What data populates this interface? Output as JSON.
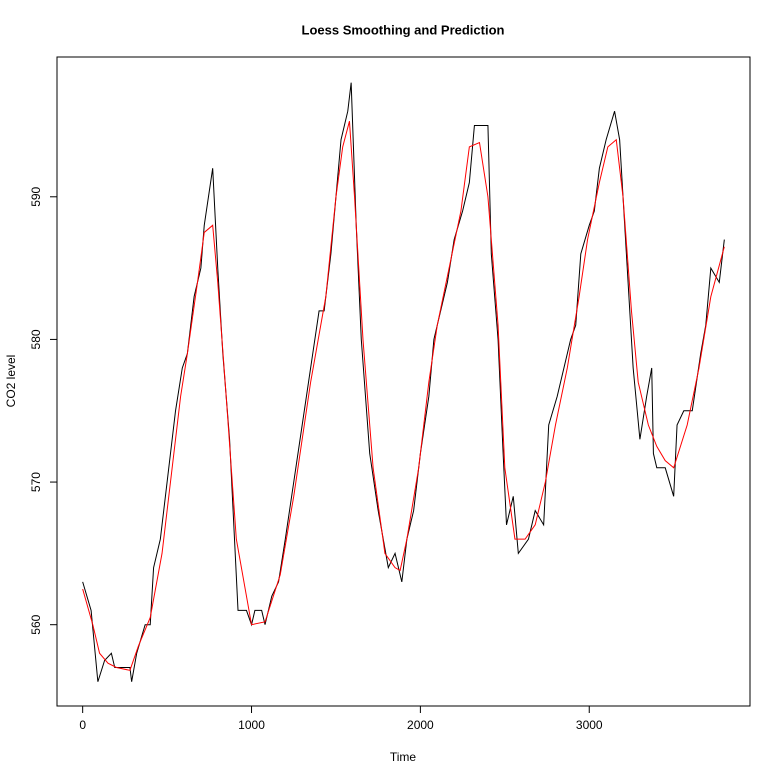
{
  "chart_data": {
    "type": "line",
    "title": "Loess Smoothing and Prediction",
    "x_label": "Time",
    "y_label": "CO2 level",
    "xlim": [
      -152,
      3952
    ],
    "ylim": [
      554.3,
      599.8
    ],
    "xticks": [
      0,
      1000,
      2000,
      3000
    ],
    "yticks": [
      560,
      570,
      580,
      590
    ],
    "grid": false,
    "series": [
      {
        "color": "#000000",
        "x": [
          0,
          50,
          90,
          130,
          170,
          190,
          240,
          280,
          290,
          320,
          370,
          400,
          420,
          460,
          500,
          550,
          590,
          620,
          660,
          700,
          720,
          770,
          800,
          830,
          870,
          920,
          970,
          1000,
          1020,
          1060,
          1080,
          1120,
          1160,
          1200,
          1250,
          1300,
          1350,
          1400,
          1430,
          1470,
          1500,
          1530,
          1570,
          1590,
          1620,
          1650,
          1700,
          1750,
          1780,
          1810,
          1850,
          1870,
          1890,
          1920,
          1960,
          2000,
          2050,
          2080,
          2120,
          2160,
          2200,
          2250,
          2290,
          2320,
          2370,
          2400,
          2420,
          2460,
          2490,
          2510,
          2550,
          2580,
          2640,
          2680,
          2730,
          2760,
          2810,
          2850,
          2890,
          2920,
          2950,
          3000,
          3030,
          3060,
          3100,
          3150,
          3180,
          3220,
          3260,
          3300,
          3340,
          3370,
          3380,
          3400,
          3450,
          3500,
          3520,
          3560,
          3610,
          3660,
          3690,
          3720,
          3770,
          3800
        ],
        "values": [
          563,
          561,
          556,
          557.5,
          558,
          557,
          557,
          557,
          556,
          558,
          560,
          560,
          564,
          566,
          570,
          575,
          578,
          579,
          583,
          585,
          588,
          592,
          585,
          579,
          573,
          561,
          561,
          560,
          561,
          561,
          560,
          562,
          563,
          566,
          570,
          574,
          578,
          582,
          582,
          586,
          590,
          594,
          596,
          598,
          588,
          580,
          572,
          568,
          566,
          564,
          565,
          564,
          563,
          566,
          568,
          572,
          576,
          580,
          582,
          584,
          587,
          589,
          591,
          595,
          595,
          595,
          586,
          580,
          572,
          567,
          569,
          565,
          566,
          568,
          567,
          574,
          576,
          578,
          580,
          581,
          586,
          588,
          589,
          592,
          594,
          596,
          594,
          586,
          578,
          573,
          576,
          578,
          572,
          571,
          571,
          569,
          574,
          575,
          575,
          579,
          581,
          585,
          584,
          587
        ]
      },
      {
        "color": "#ff0000",
        "x": [
          0,
          60,
          100,
          150,
          200,
          280,
          330,
          400,
          470,
          520,
          580,
          620,
          680,
          720,
          770,
          800,
          850,
          910,
          1000,
          1080,
          1170,
          1250,
          1350,
          1440,
          1500,
          1540,
          1580,
          1610,
          1660,
          1720,
          1790,
          1850,
          1880,
          1920,
          1990,
          2050,
          2100,
          2170,
          2240,
          2290,
          2350,
          2400,
          2460,
          2500,
          2560,
          2620,
          2680,
          2740,
          2800,
          2870,
          2940,
          2990,
          3060,
          3110,
          3160,
          3200,
          3250,
          3290,
          3350,
          3400,
          3450,
          3500,
          3580,
          3650,
          3720,
          3800
        ],
        "values": [
          562.5,
          560,
          558,
          557.3,
          557,
          556.8,
          558.5,
          560.5,
          565,
          570,
          576,
          579,
          584,
          587.5,
          588,
          584,
          576,
          566,
          560,
          560.2,
          563.5,
          569,
          577,
          583,
          590,
          593.5,
          595.3,
          590,
          580,
          571,
          565,
          564,
          563.8,
          566,
          571,
          577,
          581,
          585,
          589,
          593.5,
          593.8,
          590,
          581,
          571,
          566,
          566,
          567,
          570,
          574,
          578,
          583,
          587,
          591,
          593.5,
          594,
          590,
          582,
          577,
          574,
          572.5,
          571.5,
          571,
          574,
          578,
          583,
          586.5
        ]
      }
    ]
  }
}
